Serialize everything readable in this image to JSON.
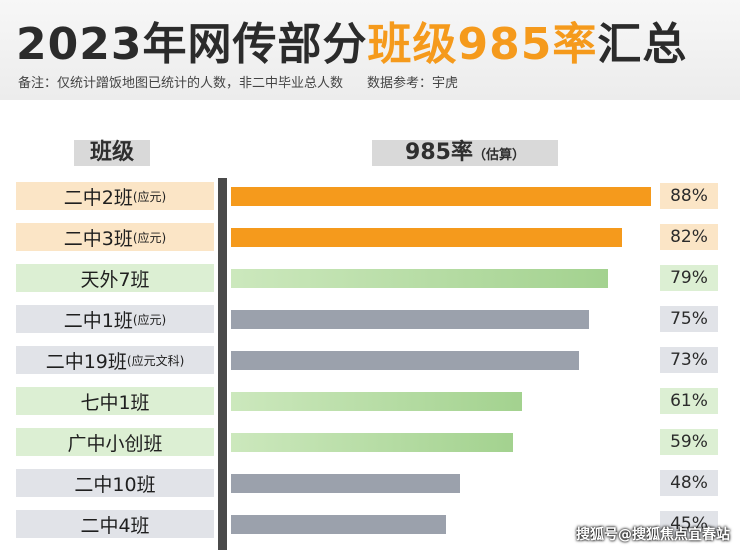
{
  "header": {
    "title_part1": "2023年网传部分",
    "title_highlight": "班级985率",
    "title_part2": "汇总",
    "note": "备注：仅统计蹭饭地图已统计的人数，非二中毕业总人数",
    "source": "数据参考：宇虎"
  },
  "columns": {
    "class_header": "班级",
    "rate_header": "985率",
    "rate_sub": "（估算）"
  },
  "colors": {
    "orange": "#f59a1c",
    "green": "#a3d28f",
    "gray": "#9ba1ac"
  },
  "chart_data": {
    "type": "bar",
    "orientation": "horizontal",
    "title": "2023年网传部分班级985率汇总",
    "xlim": [
      0,
      88
    ],
    "grid": false,
    "categories": [
      "二中2班(应元)",
      "二中3班(应元)",
      "天外7班",
      "二中1班(应元)",
      "二中19班(应元文科)",
      "七中1班",
      "广中小创班",
      "二中10班",
      "二中4班"
    ],
    "rows": [
      {
        "name": "二中2班",
        "suffix": "(应元)",
        "value": 88,
        "label": "88%",
        "color_group": "orange"
      },
      {
        "name": "二中3班",
        "suffix": "(应元)",
        "value": 82,
        "label": "82%",
        "color_group": "orange"
      },
      {
        "name": "天外7班",
        "suffix": "",
        "value": 79,
        "label": "79%",
        "color_group": "green"
      },
      {
        "name": "二中1班",
        "suffix": "(应元)",
        "value": 75,
        "label": "75%",
        "color_group": "gray"
      },
      {
        "name": "二中19班",
        "suffix": "(应元文科)",
        "value": 73,
        "label": "73%",
        "color_group": "gray"
      },
      {
        "name": "七中1班",
        "suffix": "",
        "value": 61,
        "label": "61%",
        "color_group": "green"
      },
      {
        "name": "广中小创班",
        "suffix": "",
        "value": 59,
        "label": "59%",
        "color_group": "green"
      },
      {
        "name": "二中10班",
        "suffix": "",
        "value": 48,
        "label": "48%",
        "color_group": "gray"
      },
      {
        "name": "二中4班",
        "suffix": "",
        "value": 45,
        "label": "45%",
        "color_group": "gray"
      }
    ]
  },
  "watermark": "搜狐号@搜狐焦点宜春站"
}
